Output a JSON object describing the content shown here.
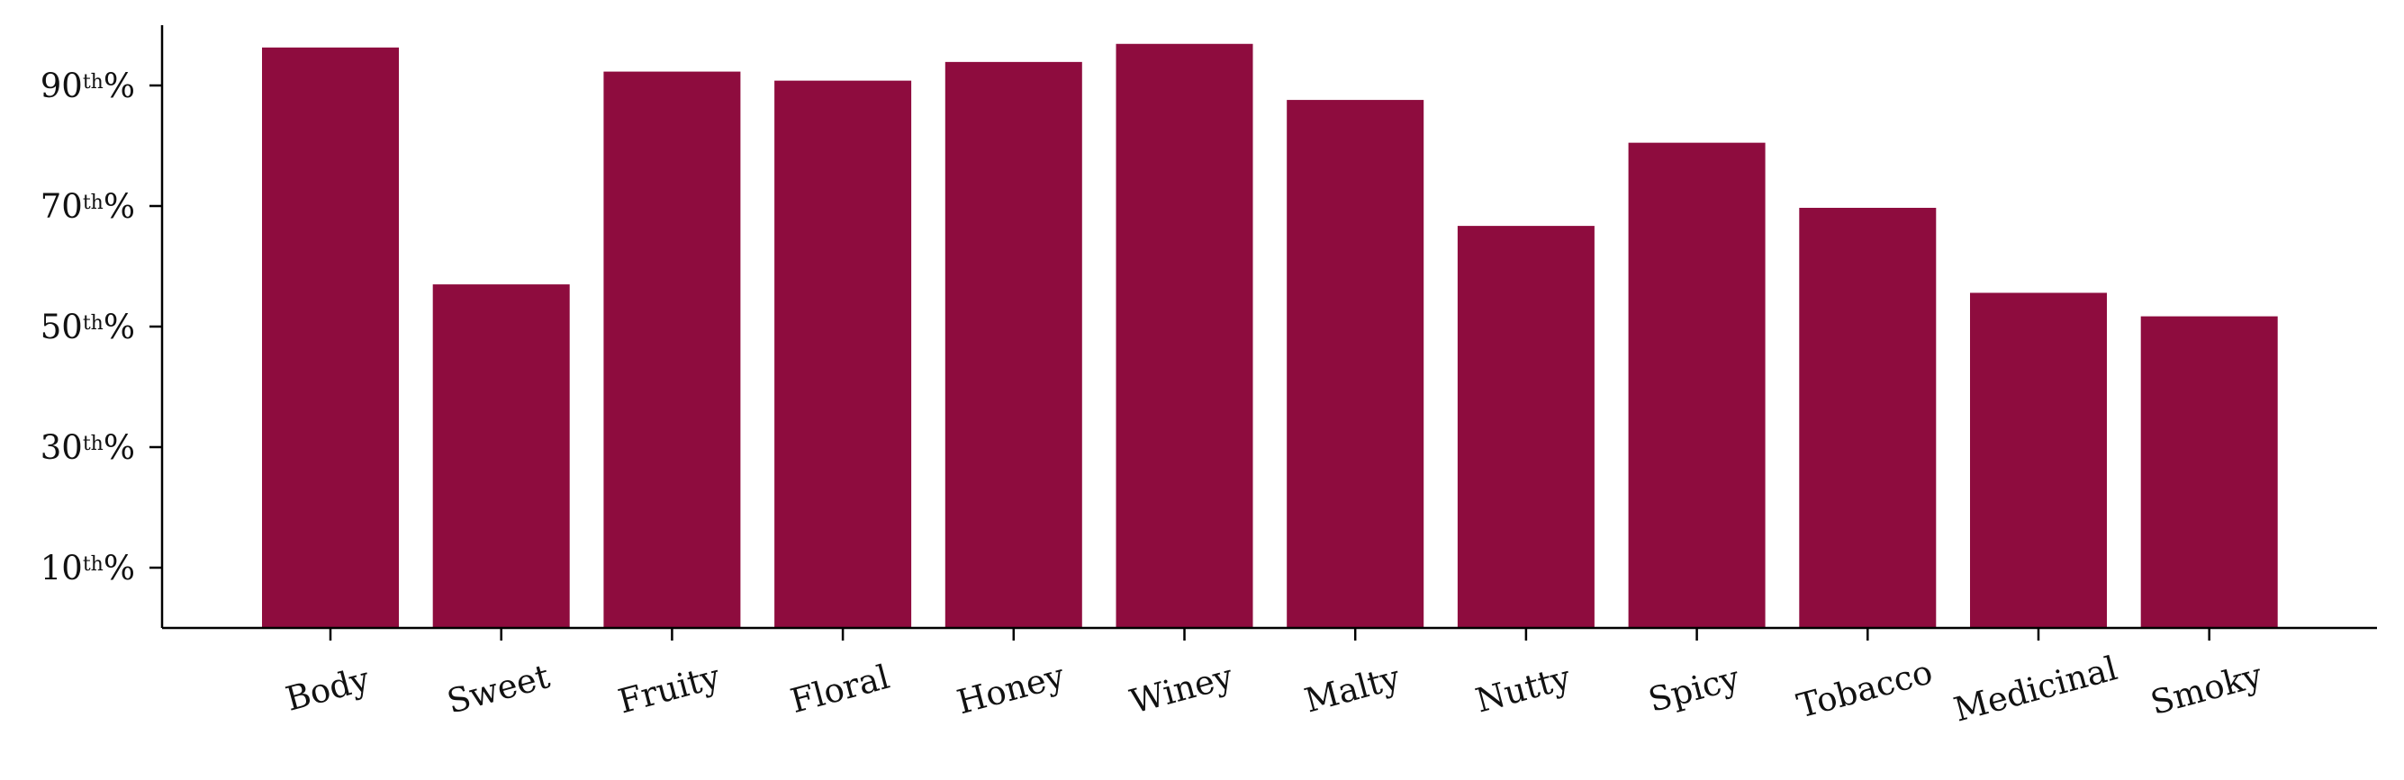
{
  "chart_data": {
    "type": "bar",
    "title": "",
    "xlabel": "",
    "ylabel": "",
    "categories": [
      "Body",
      "Sweet",
      "Fruity",
      "Floral",
      "Honey",
      "Winey",
      "Malty",
      "Nutty",
      "Spicy",
      "Tobacco",
      "Medicinal",
      "Smoky"
    ],
    "values": [
      96.3,
      57.0,
      92.3,
      90.8,
      93.9,
      96.9,
      87.6,
      66.7,
      80.5,
      69.7,
      55.6,
      51.7
    ],
    "ylim": [
      0,
      100
    ],
    "yticks": [
      {
        "value": 10,
        "num": "10",
        "sup": "th",
        "suffix": "%"
      },
      {
        "value": 30,
        "num": "30",
        "sup": "th",
        "suffix": "%"
      },
      {
        "value": 50,
        "num": "50",
        "sup": "th",
        "suffix": "%"
      },
      {
        "value": 70,
        "num": "70",
        "sup": "th",
        "suffix": "%"
      },
      {
        "value": 90,
        "num": "90",
        "sup": "th",
        "suffix": "%"
      }
    ],
    "bar_color": "#8e0c3e",
    "grid": false,
    "legend": "none"
  }
}
